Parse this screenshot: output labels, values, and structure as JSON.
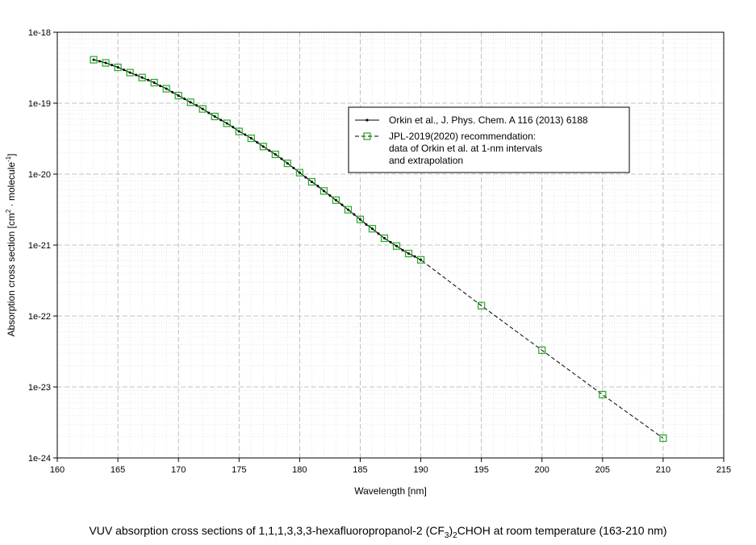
{
  "chart_data": {
    "type": "line",
    "xlabel": "Wavelength [nm]",
    "ylabel_parts": [
      "Absorption cross section [cm",
      "2",
      " · molecule",
      "-1",
      "]"
    ],
    "xlim": [
      160,
      215
    ],
    "ylim": [
      1e-24,
      1e-18
    ],
    "yscale": "log",
    "grid": true,
    "xticks": [
      160,
      165,
      170,
      175,
      180,
      185,
      190,
      195,
      200,
      205,
      210,
      215
    ],
    "xtick_labels": [
      "160",
      "165",
      "170",
      "175",
      "180",
      "185",
      "190",
      "195",
      "200",
      "205",
      "210",
      "215"
    ],
    "yticks": [
      1e-24,
      1e-23,
      1e-22,
      1e-21,
      1e-20,
      1e-19,
      1e-18
    ],
    "ytick_labels": [
      "1e-24",
      "1e-23",
      "1e-22",
      "1e-21",
      "1e-20",
      "1e-19",
      "1e-18"
    ],
    "legend_placement": "upper-right",
    "series": [
      {
        "name": "Orkin et al., J. Phys. Chem. A 116 (2013) 6188",
        "style": "solid",
        "marker": "dot",
        "color": "#000000",
        "x": [
          163,
          163.5,
          164,
          164.5,
          165,
          165.5,
          166,
          166.5,
          167,
          167.5,
          168,
          168.5,
          169,
          169.5,
          170,
          170.5,
          171,
          171.5,
          172,
          172.5,
          173,
          173.5,
          174,
          174.5,
          175,
          175.5,
          176,
          176.5,
          177,
          177.5,
          178,
          178.5,
          179,
          179.5,
          180,
          180.5,
          181,
          181.5,
          182,
          182.5,
          183,
          183.5,
          184,
          184.5,
          185,
          185.5,
          186,
          186.5,
          187,
          187.5,
          188,
          188.5,
          189,
          189.5,
          190
        ],
        "y": [
          4.1e-19,
          3.9e-19,
          3.7e-19,
          3.45e-19,
          3.2e-19,
          2.95e-19,
          2.7e-19,
          2.5e-19,
          2.3e-19,
          2.12e-19,
          1.95e-19,
          1.75e-19,
          1.6e-19,
          1.43e-19,
          1.28e-19,
          1.15e-19,
          1.03e-19,
          9.3e-20,
          8.3e-20,
          7.3e-20,
          6.5e-20,
          5.8e-20,
          5.2e-20,
          4.6e-20,
          4e-20,
          3.6e-20,
          3.2e-20,
          2.8e-20,
          2.45e-20,
          2.15e-20,
          1.9e-20,
          1.65e-20,
          1.42e-20,
          1.22e-20,
          1.05e-20,
          9e-21,
          7.8e-21,
          6.8e-21,
          5.8e-21,
          5e-21,
          4.3e-21,
          3.7e-21,
          3.15e-21,
          2.7e-21,
          2.3e-21,
          1.95e-21,
          1.7e-21,
          1.45e-21,
          1.25e-21,
          1.1e-21,
          9.7e-22,
          8.5e-22,
          7.6e-22,
          6.9e-22,
          6.2e-22
        ]
      },
      {
        "name_lines": [
          "JPL-2019(2020) recommendation:",
          "data of Orkin et al. at 1-nm intervals",
          "and extrapolation"
        ],
        "style": "dashed",
        "marker": "open-square",
        "color": "#000000",
        "marker_color": "#22aa22",
        "x": [
          163,
          164,
          165,
          166,
          167,
          168,
          169,
          170,
          171,
          172,
          173,
          174,
          175,
          176,
          177,
          178,
          179,
          180,
          181,
          182,
          183,
          184,
          185,
          186,
          187,
          188,
          189,
          190,
          195,
          200,
          205,
          210
        ],
        "y": [
          4.1e-19,
          3.7e-19,
          3.2e-19,
          2.7e-19,
          2.3e-19,
          1.95e-19,
          1.6e-19,
          1.28e-19,
          1.03e-19,
          8.3e-20,
          6.5e-20,
          5.2e-20,
          4e-20,
          3.2e-20,
          2.45e-20,
          1.9e-20,
          1.42e-20,
          1.05e-20,
          7.8e-21,
          5.8e-21,
          4.3e-21,
          3.15e-21,
          2.3e-21,
          1.7e-21,
          1.25e-21,
          9.7e-22,
          7.6e-22,
          6.2e-22,
          1.4e-22,
          3.3e-23,
          7.8e-24,
          1.9e-24
        ]
      }
    ]
  },
  "caption": {
    "before": "VUV absorption cross sections of 1,1,1,3,3,3-hexafluoropropanol-2 (CF",
    "sub": "3",
    "after": ")",
    "sub2": "2",
    "end": "CHOH at room temperature (163-210 nm)"
  }
}
